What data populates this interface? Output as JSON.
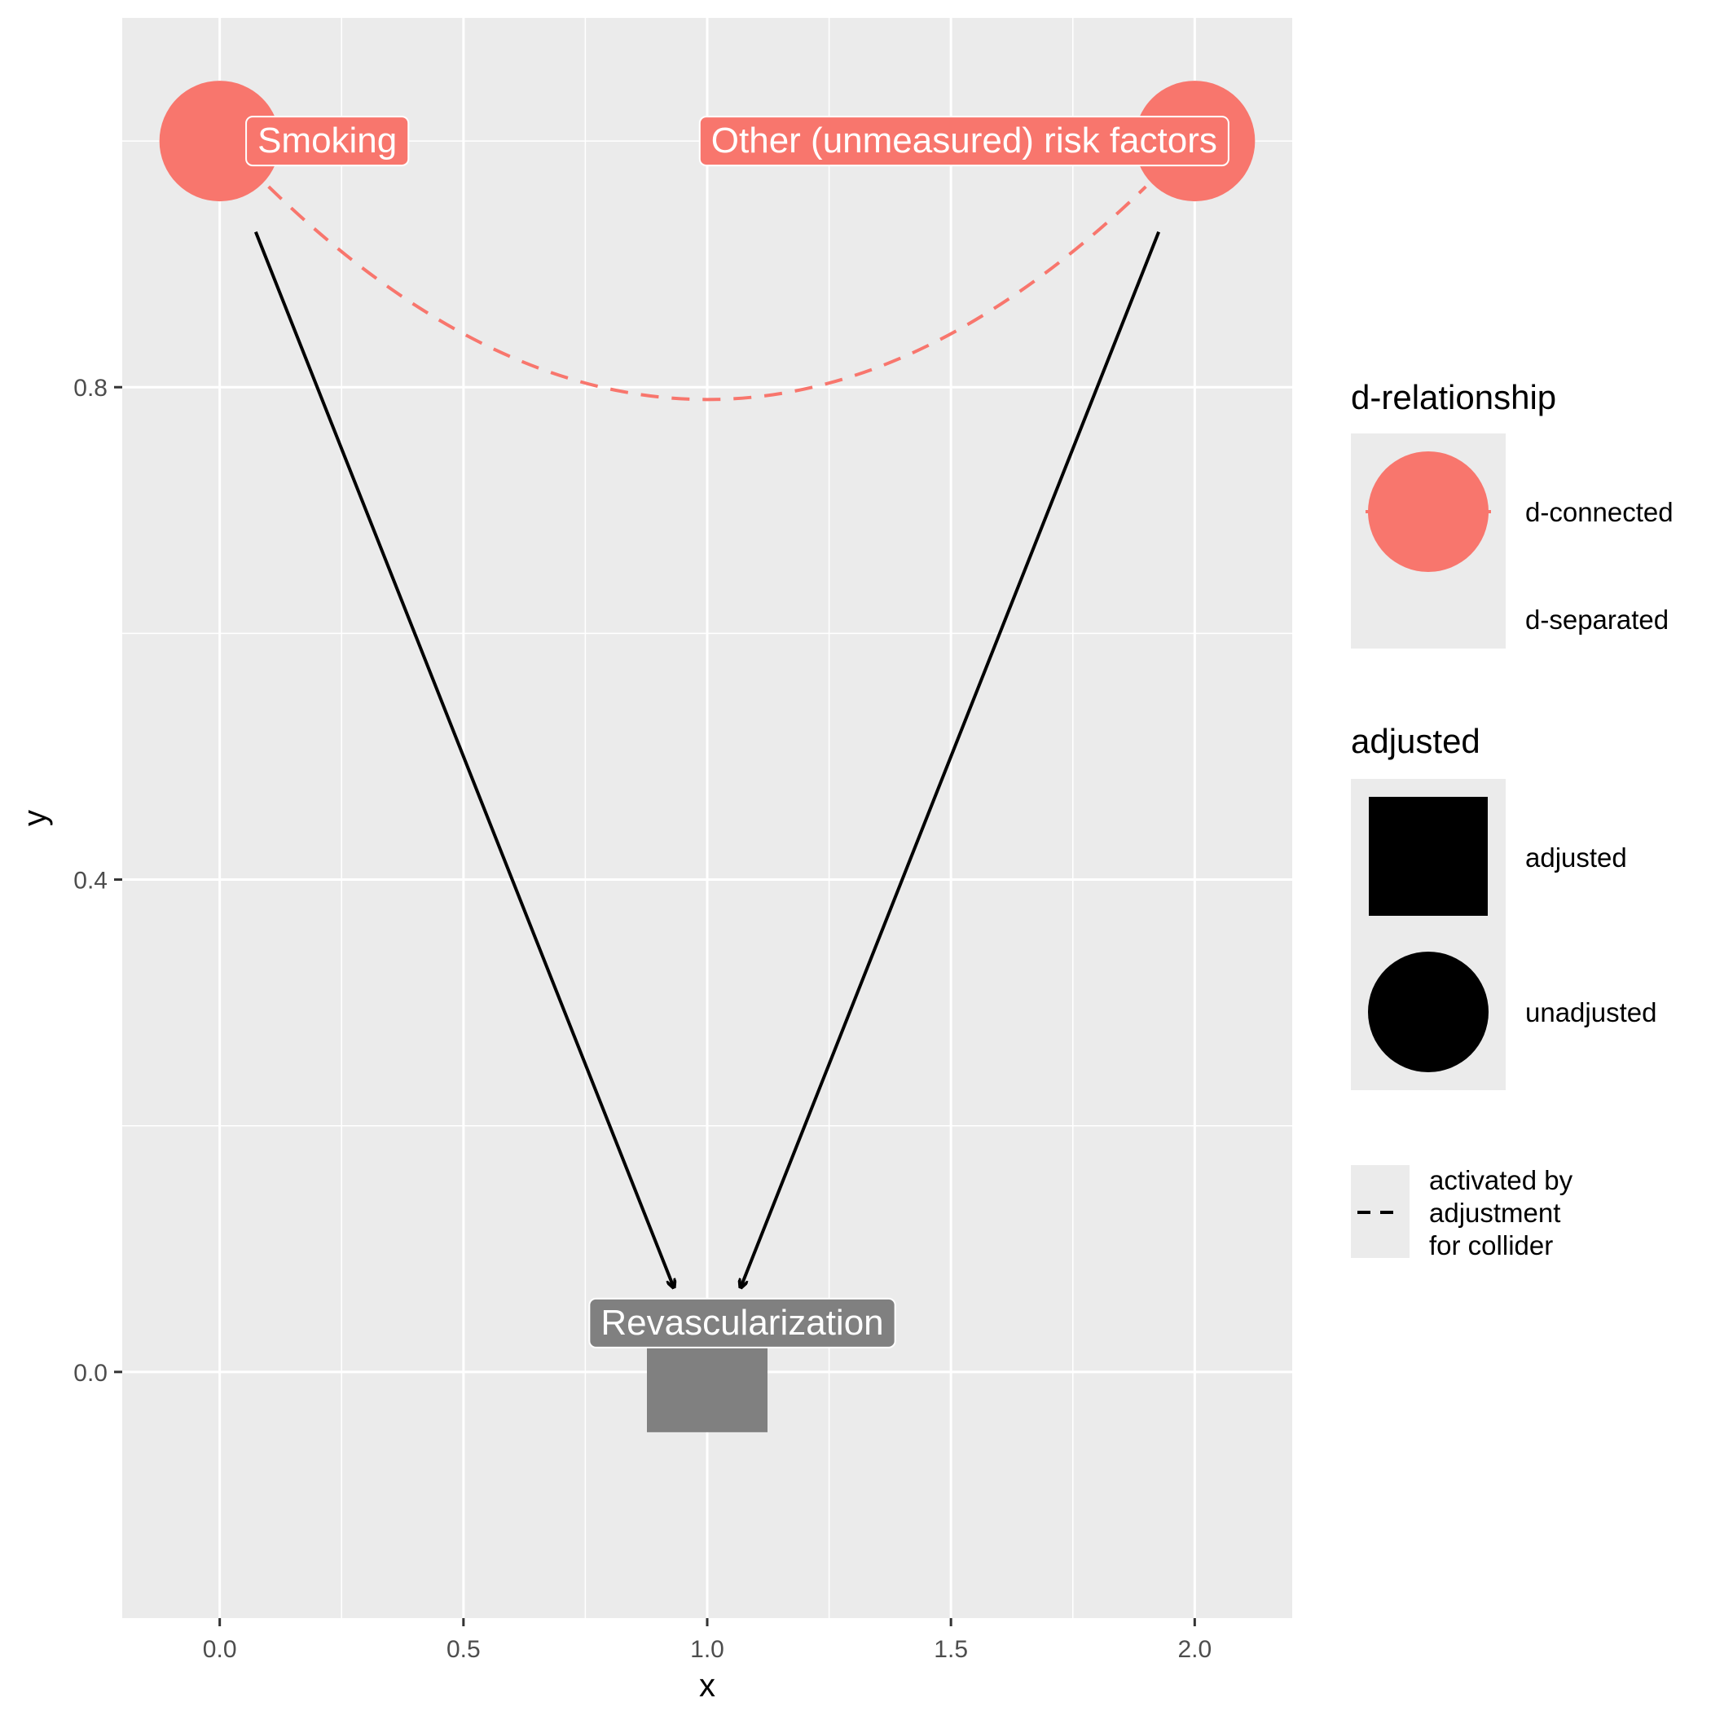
{
  "colors": {
    "panel_background": "#EBEBEB",
    "grid_line": "#FFFFFF",
    "d_connected": "#F8766D",
    "adjusted_node": "#808080",
    "edge": "#000000",
    "label_text": "#FFFFFF"
  },
  "chart_data": {
    "type": "dag",
    "xlabel": "x",
    "ylabel": "y",
    "xlim": [
      -0.2,
      2.2
    ],
    "ylim": [
      -0.2,
      1.1
    ],
    "x_ticks": [
      "0.0",
      "0.5",
      "1.0",
      "1.5",
      "2.0"
    ],
    "x_tick_values": [
      0,
      0.5,
      1.0,
      1.5,
      2.0
    ],
    "y_ticks": [
      "0.0",
      "0.4",
      "0.8"
    ],
    "y_tick_values": [
      0,
      0.4,
      0.8
    ],
    "x_minor_values": [
      0.25,
      0.75,
      1.25,
      1.75
    ],
    "y_minor_values": [
      0.2,
      0.6,
      1.0
    ],
    "nodes": [
      {
        "id": "smoking",
        "label": "Smoking",
        "x": 0,
        "y": 1.0,
        "shape": "circle",
        "adjusted": "unadjusted",
        "d_relationship": "d-connected",
        "color": "#F8766D"
      },
      {
        "id": "other",
        "label": "Other (unmeasured) risk factors",
        "x": 2,
        "y": 1.0,
        "shape": "circle",
        "adjusted": "unadjusted",
        "d_relationship": "d-connected",
        "color": "#F8766D"
      },
      {
        "id": "revasc",
        "label": "Revascularization",
        "x": 1,
        "y": 0,
        "shape": "square",
        "adjusted": "adjusted",
        "d_relationship": "none",
        "color": "#808080"
      }
    ],
    "edges": [
      {
        "from": "smoking",
        "to": "revasc",
        "style": "solid",
        "arrow": true
      },
      {
        "from": "other",
        "to": "revasc",
        "style": "solid",
        "arrow": true
      },
      {
        "from": "smoking",
        "to": "other",
        "style": "dashed",
        "curved": true,
        "dip_to_y": 0.79,
        "color": "#F8766D"
      }
    ]
  },
  "legend": {
    "d_relationship": {
      "title": "d-relationship",
      "items": [
        {
          "label": "d-connected",
          "symbol": "circle",
          "color": "#F8766D"
        },
        {
          "label": "d-separated",
          "symbol": "none"
        }
      ]
    },
    "adjusted": {
      "title": "adjusted",
      "items": [
        {
          "label": "adjusted",
          "symbol": "square",
          "color": "#000000"
        },
        {
          "label": "unadjusted",
          "symbol": "circle",
          "color": "#000000"
        }
      ]
    },
    "linetype": {
      "lines": [
        "activated by",
        "adjustment",
        "for collider"
      ],
      "symbol": "dashed-line"
    }
  }
}
